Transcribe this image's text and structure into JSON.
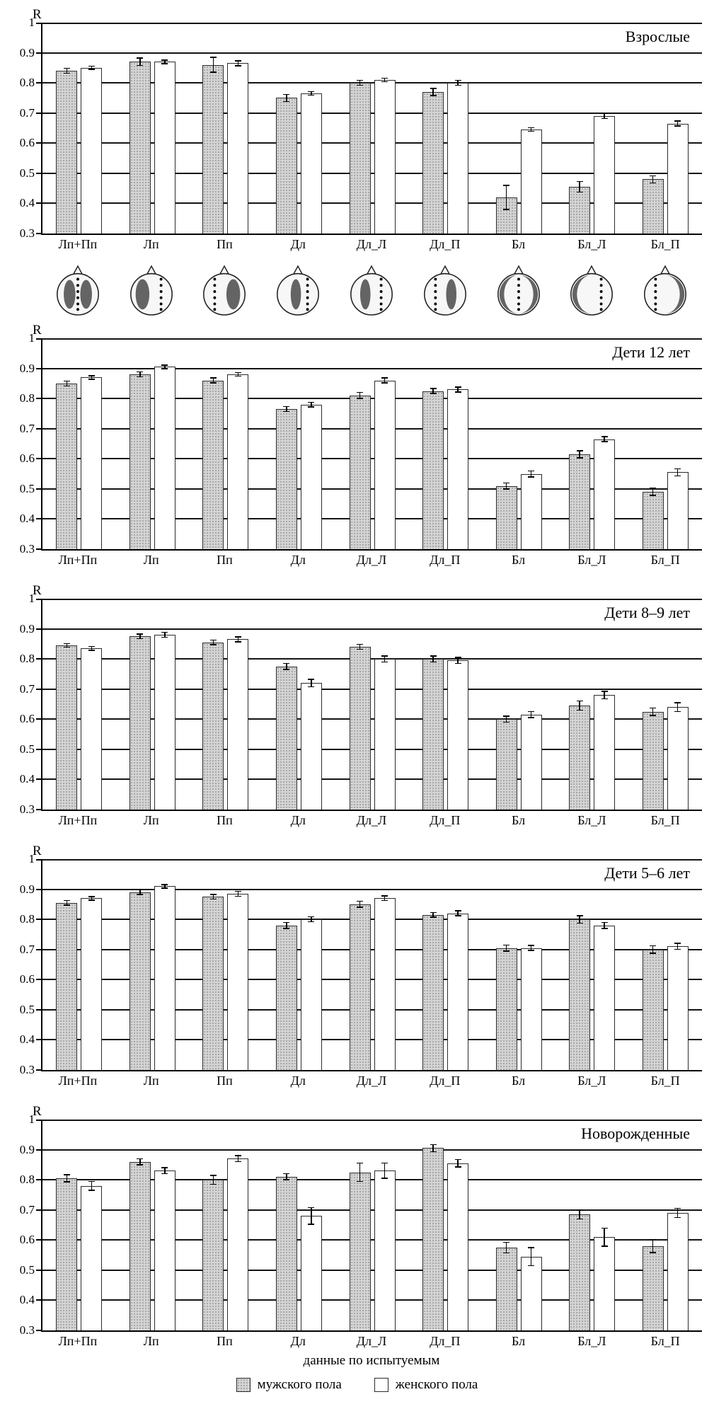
{
  "meta": {
    "y_axis_label": "R",
    "x_axis_title": "данные по испытуемым",
    "legend_position": "bottom"
  },
  "colors": {
    "male_bar_fill": "#d4d4d4",
    "male_bar_dots": "#9a9a9a",
    "female_bar_fill": "#ffffff",
    "bar_border": "#2b2b2b",
    "axis_line": "#000000",
    "gridline": "#141414",
    "shaded_region": "#4a4a4a"
  },
  "legend": {
    "items": [
      {
        "label": "мужского пола",
        "swatch": "gray-dotted"
      },
      {
        "label": "женского пола",
        "swatch": "white"
      }
    ]
  },
  "head_icons": [
    {
      "category": "Лп+Пп",
      "pattern": "both-hemispheres",
      "dot_columns": [
        36
      ]
    },
    {
      "category": "Лп",
      "pattern": "left-hemisphere",
      "dot_columns": [
        50
      ]
    },
    {
      "category": "Пп",
      "pattern": "right-hemisphere",
      "dot_columns": [
        22
      ]
    },
    {
      "category": "Дл",
      "pattern": "center-band",
      "dot_columns": [
        50
      ]
    },
    {
      "category": "Дл_Л",
      "pattern": "left-band",
      "dot_columns": [
        50
      ]
    },
    {
      "category": "Дл_П",
      "pattern": "right-band",
      "dot_columns": [
        22
      ]
    },
    {
      "category": "Бл",
      "pattern": "periphery-both",
      "dot_columns": [
        36
      ]
    },
    {
      "category": "Бл_Л",
      "pattern": "periphery-left",
      "dot_columns": [
        50
      ]
    },
    {
      "category": "Бл_П",
      "pattern": "periphery-right",
      "dot_columns": [
        22
      ]
    }
  ],
  "chart_data": [
    {
      "type": "bar",
      "title": "Взрослые",
      "ylabel": "R",
      "ylim": [
        0.3,
        1
      ],
      "yticks": [
        0.3,
        0.4,
        0.5,
        0.6,
        0.7,
        0.8,
        0.9,
        1
      ],
      "grid": true,
      "categories": [
        "Лп+Пп",
        "Лп",
        "Пп",
        "Дл",
        "Дл_Л",
        "Дл_П",
        "Бл",
        "Бл_Л",
        "Бл_П"
      ],
      "series": [
        {
          "name": "мужского пола",
          "values": [
            0.84,
            0.87,
            0.86,
            0.75,
            0.8,
            0.77,
            0.42,
            0.455,
            0.48
          ],
          "errors": [
            0.008,
            0.012,
            0.025,
            0.012,
            0.008,
            0.012,
            0.04,
            0.018,
            0.012
          ]
        },
        {
          "name": "женского пола",
          "values": [
            0.85,
            0.87,
            0.865,
            0.765,
            0.81,
            0.8,
            0.645,
            0.69,
            0.665
          ],
          "errors": [
            0.005,
            0.006,
            0.008,
            0.006,
            0.006,
            0.008,
            0.006,
            0.008,
            0.008
          ]
        }
      ]
    },
    {
      "type": "bar",
      "title": "Дети 12 лет",
      "ylabel": "R",
      "ylim": [
        0.3,
        1
      ],
      "yticks": [
        0.3,
        0.4,
        0.5,
        0.6,
        0.7,
        0.8,
        0.9,
        1
      ],
      "grid": true,
      "categories": [
        "Лп+Пп",
        "Лп",
        "Пп",
        "Дл",
        "Дл_Л",
        "Дл_П",
        "Бл",
        "Бл_Л",
        "Бл_П"
      ],
      "series": [
        {
          "name": "мужского пола",
          "values": [
            0.85,
            0.88,
            0.86,
            0.765,
            0.81,
            0.825,
            0.51,
            0.615,
            0.49
          ],
          "errors": [
            0.008,
            0.008,
            0.008,
            0.008,
            0.01,
            0.008,
            0.01,
            0.012,
            0.012
          ]
        },
        {
          "name": "женского пола",
          "values": [
            0.87,
            0.905,
            0.88,
            0.78,
            0.86,
            0.83,
            0.55,
            0.665,
            0.555
          ],
          "errors": [
            0.006,
            0.006,
            0.006,
            0.008,
            0.008,
            0.008,
            0.01,
            0.008,
            0.012
          ]
        }
      ]
    },
    {
      "type": "bar",
      "title": "Дети 8–9 лет",
      "ylabel": "R",
      "ylim": [
        0.3,
        1
      ],
      "yticks": [
        0.3,
        0.4,
        0.5,
        0.6,
        0.7,
        0.8,
        0.9,
        1
      ],
      "grid": true,
      "categories": [
        "Лп+Пп",
        "Лп",
        "Пп",
        "Дл",
        "Дл_Л",
        "Дл_П",
        "Бл",
        "Бл_Л",
        "Бл_П"
      ],
      "series": [
        {
          "name": "мужского пола",
          "values": [
            0.845,
            0.875,
            0.855,
            0.775,
            0.84,
            0.8,
            0.6,
            0.645,
            0.625
          ],
          "errors": [
            0.006,
            0.008,
            0.008,
            0.01,
            0.008,
            0.01,
            0.01,
            0.015,
            0.012
          ]
        },
        {
          "name": "женского пола",
          "values": [
            0.835,
            0.88,
            0.865,
            0.72,
            0.8,
            0.795,
            0.615,
            0.68,
            0.64
          ],
          "errors": [
            0.006,
            0.008,
            0.008,
            0.012,
            0.01,
            0.01,
            0.01,
            0.012,
            0.015
          ]
        }
      ]
    },
    {
      "type": "bar",
      "title": "Дети 5–6 лет",
      "ylabel": "R",
      "ylim": [
        0.3,
        1
      ],
      "yticks": [
        0.3,
        0.4,
        0.5,
        0.6,
        0.7,
        0.8,
        0.9,
        1
      ],
      "grid": true,
      "categories": [
        "Лп+Пп",
        "Лп",
        "Пп",
        "Дл",
        "Дл_Л",
        "Дл_П",
        "Бл",
        "Бл_Л",
        "Бл_П"
      ],
      "series": [
        {
          "name": "мужского пола",
          "values": [
            0.855,
            0.89,
            0.875,
            0.78,
            0.85,
            0.815,
            0.705,
            0.8,
            0.7
          ],
          "errors": [
            0.008,
            0.008,
            0.008,
            0.01,
            0.01,
            0.008,
            0.01,
            0.012,
            0.012
          ]
        },
        {
          "name": "женского пола",
          "values": [
            0.87,
            0.91,
            0.885,
            0.8,
            0.87,
            0.82,
            0.705,
            0.78,
            0.71
          ],
          "errors": [
            0.006,
            0.006,
            0.008,
            0.008,
            0.008,
            0.008,
            0.008,
            0.01,
            0.01
          ]
        }
      ]
    },
    {
      "type": "bar",
      "title": "Новорожденные",
      "ylabel": "R",
      "ylim": [
        0.3,
        1
      ],
      "yticks": [
        0.3,
        0.4,
        0.5,
        0.6,
        0.7,
        0.8,
        0.9,
        1
      ],
      "grid": true,
      "categories": [
        "Лп+Пп",
        "Лп",
        "Пп",
        "Дл",
        "Дл_Л",
        "Дл_П",
        "Бл",
        "Бл_Л",
        "Бл_П"
      ],
      "series": [
        {
          "name": "мужского пола",
          "values": [
            0.805,
            0.86,
            0.8,
            0.81,
            0.825,
            0.905,
            0.575,
            0.685,
            0.58
          ],
          "errors": [
            0.012,
            0.01,
            0.015,
            0.01,
            0.03,
            0.012,
            0.018,
            0.015,
            0.022
          ]
        },
        {
          "name": "женского пола",
          "values": [
            0.78,
            0.83,
            0.87,
            0.68,
            0.83,
            0.855,
            0.545,
            0.61,
            0.69
          ],
          "errors": [
            0.015,
            0.01,
            0.01,
            0.028,
            0.025,
            0.012,
            0.03,
            0.03,
            0.015
          ]
        }
      ]
    }
  ]
}
